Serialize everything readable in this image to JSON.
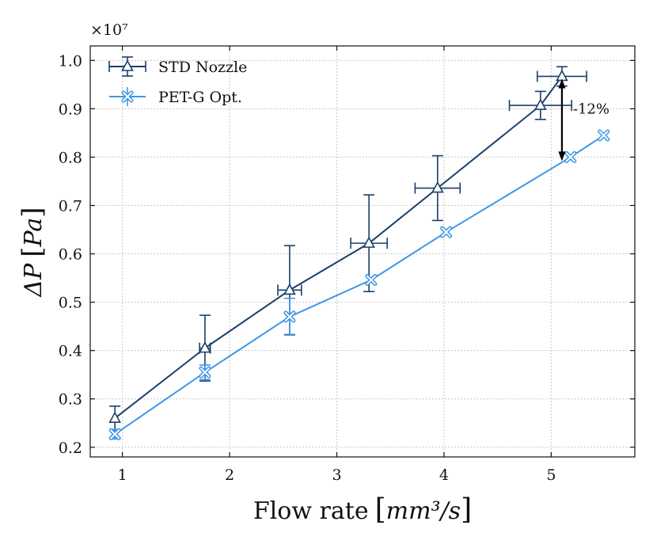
{
  "chart_data": {
    "type": "line",
    "title": "",
    "xlabel": "Flow rate",
    "xlabel_unit": "mm³/s",
    "ylabel": "ΔP",
    "ylabel_unit": "Pa",
    "y_scale_label": "×10⁷",
    "y_scale": 10000000,
    "xlim": [
      0.7,
      5.78
    ],
    "ylim": [
      0.18,
      1.03
    ],
    "xticks": [
      1,
      2,
      3,
      4,
      5
    ],
    "yticks": [
      0.2,
      0.3,
      0.4,
      0.5,
      0.6,
      0.7,
      0.8,
      0.9,
      1.0
    ],
    "ytick_labels": [
      "0.2",
      "0.3",
      "0.4",
      "0.5",
      "0.6",
      "0.7",
      "0.8",
      "0.9",
      "1.0"
    ],
    "xtick_labels": [
      "1",
      "2",
      "3",
      "4",
      "5"
    ],
    "grid": true,
    "legend_position": "top-left",
    "series": [
      {
        "name": "STD Nozzle",
        "color": "#1b3f6b",
        "marker": "triangle",
        "x": [
          0.93,
          1.77,
          2.56,
          3.3,
          3.94,
          4.9,
          5.1
        ],
        "y": [
          0.26,
          0.405,
          0.525,
          0.622,
          0.736,
          0.907,
          0.967
        ],
        "yerr": [
          0.025,
          0.068,
          0.092,
          0.1,
          0.067,
          0.029,
          0.02
        ],
        "xerr": [
          0.0,
          0.05,
          0.11,
          0.17,
          0.21,
          0.29,
          0.23
        ]
      },
      {
        "name": "PET-G Opt.",
        "color": "#3f96e6",
        "marker": "x",
        "x": [
          0.93,
          1.77,
          2.56,
          3.32,
          4.02,
          5.18,
          5.49
        ],
        "y": [
          0.227,
          0.355,
          0.47,
          0.546,
          0.645,
          0.8,
          0.845
        ],
        "yerr": [
          0.01,
          0.015,
          0.038,
          0.0,
          0.0,
          0.0,
          0.0
        ],
        "xerr": [
          0.0,
          0.0,
          0.0,
          0.0,
          0.0,
          0.0,
          0.0
        ]
      }
    ],
    "annotations": [
      {
        "text": "-12%",
        "arrow_x": 5.1,
        "arrow_y_from": 0.962,
        "arrow_y_to": 0.792
      }
    ]
  }
}
